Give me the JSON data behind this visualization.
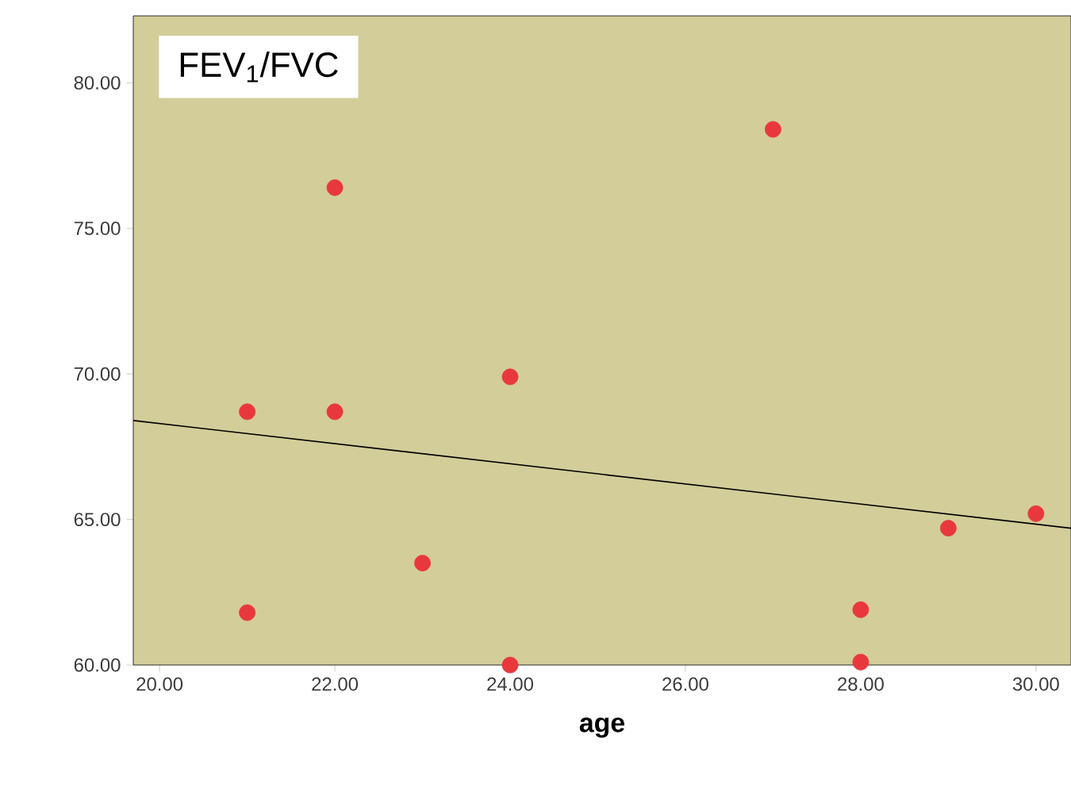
{
  "chart_data": {
    "type": "scatter",
    "title": "FEV$_{1}$/FVC",
    "xlabel": "age",
    "xlim": [
      19.7,
      30.4
    ],
    "ylim": [
      60,
      82.3
    ],
    "xticks": [
      {
        "value": 20,
        "label": "20.00"
      },
      {
        "value": 22,
        "label": "22.00"
      },
      {
        "value": 24,
        "label": "24.00"
      },
      {
        "value": 26,
        "label": "26.00"
      },
      {
        "value": 28,
        "label": "28.00"
      },
      {
        "value": 30,
        "label": "30.00"
      }
    ],
    "yticks": [
      {
        "value": 60,
        "label": "60.00"
      },
      {
        "value": 65,
        "label": "65.00"
      },
      {
        "value": 70,
        "label": "70.00"
      },
      {
        "value": 75,
        "label": "75.00"
      },
      {
        "value": 80,
        "label": "80.00"
      }
    ],
    "marker": "circle",
    "series": [
      {
        "color": "#e8383d",
        "x": [
          21,
          21,
          22,
          22,
          23,
          24,
          24,
          27,
          28,
          28,
          29,
          30
        ],
        "values": [
          68.7,
          61.8,
          76.4,
          68.7,
          63.5,
          69.9,
          60.0,
          78.4,
          61.9,
          60.1,
          64.7,
          65.2
        ]
      },
      {
        "type": "line",
        "marker": "none",
        "color": "#000000",
        "x": [
          19.7,
          30.4
        ],
        "values": [
          68.4,
          64.7
        ]
      }
    ]
  }
}
